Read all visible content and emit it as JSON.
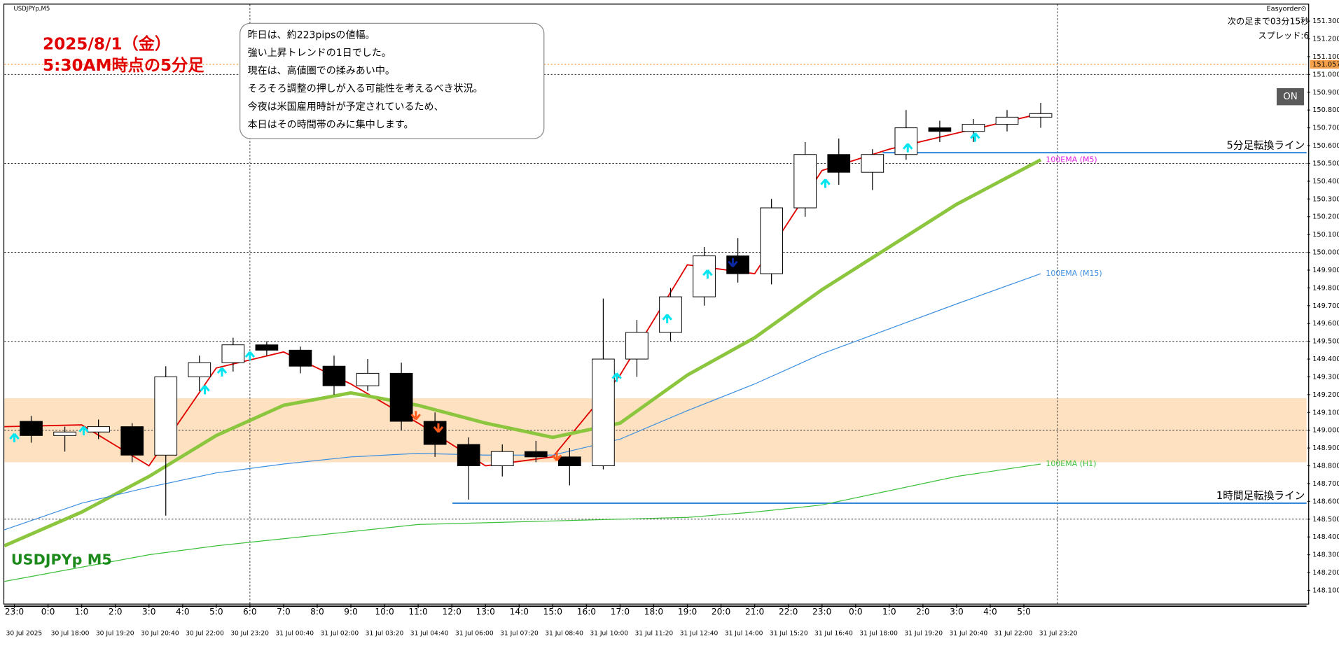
{
  "chart_data": {
    "type": "candlestick",
    "symbol_caption": "USDJPYp,M5",
    "watermark": "USDJPYp M5",
    "headline": [
      "2025/8/1（金）",
      "5:30AM時点の5分足"
    ],
    "note": [
      "昨日は、約223pipsの値幅。",
      "強い上昇トレンドの1日でした。",
      "現在は、高値圏での揉みあい中。",
      "そろそろ調整の押しが入る可能性を考えるべき状況。",
      "今夜は米国雇用時計が予定されているため、",
      "本日はその時間帯のみに集中します。"
    ],
    "panel": [
      "Easyorder⊙",
      "次の足まで03分15秒",
      "スプレッド:6"
    ],
    "button": "ON",
    "xlim": [
      -0.3,
      38.4
    ],
    "ylim": [
      148.025,
      151.393
    ],
    "xticks": [
      {
        "value": 0,
        "label": "23:0"
      },
      {
        "value": 1,
        "label": "0:0"
      },
      {
        "value": 2,
        "label": "1:0"
      },
      {
        "value": 3,
        "label": "2:0"
      },
      {
        "value": 4,
        "label": "3:0"
      },
      {
        "value": 5,
        "label": "4:0"
      },
      {
        "value": 6,
        "label": "5:0"
      },
      {
        "value": 7,
        "label": "6:0"
      },
      {
        "value": 8,
        "label": "7:0"
      },
      {
        "value": 9,
        "label": "8:0"
      },
      {
        "value": 10,
        "label": "9:0"
      },
      {
        "value": 11,
        "label": "10:0"
      },
      {
        "value": 12,
        "label": "11:0"
      },
      {
        "value": 13,
        "label": "12:0"
      },
      {
        "value": 14,
        "label": "13:0"
      },
      {
        "value": 15,
        "label": "14:0"
      },
      {
        "value": 16,
        "label": "15:0"
      },
      {
        "value": 17,
        "label": "16:0"
      },
      {
        "value": 18,
        "label": "17:0"
      },
      {
        "value": 19,
        "label": "18:0"
      },
      {
        "value": 20,
        "label": "19:0"
      },
      {
        "value": 21,
        "label": "20:0"
      },
      {
        "value": 22,
        "label": "21:0"
      },
      {
        "value": 23,
        "label": "22:0"
      },
      {
        "value": 24,
        "label": "23:0"
      },
      {
        "value": 25,
        "label": "0:0"
      },
      {
        "value": 26,
        "label": "1:0"
      },
      {
        "value": 27,
        "label": "2:0"
      },
      {
        "value": 28,
        "label": "3:0"
      },
      {
        "value": 29,
        "label": "4:0"
      },
      {
        "value": 30,
        "label": "5:0"
      }
    ],
    "date_labels": [
      "30 Jul 2025",
      "30 Jul 18:00",
      "30 Jul 19:20",
      "30 Jul 20:40",
      "30 Jul 22:00",
      "30 Jul 23:20",
      "31 Jul 00:40",
      "31 Jul 02:00",
      "31 Jul 03:20",
      "31 Jul 04:40",
      "31 Jul 06:00",
      "31 Jul 07:20",
      "31 Jul 08:40",
      "31 Jul 10:00",
      "31 Jul 11:20",
      "31 Jul 12:40",
      "31 Jul 14:00",
      "31 Jul 15:20",
      "31 Jul 16:40",
      "31 Jul 18:00",
      "31 Jul 19:20",
      "31 Jul 20:40",
      "31 Jul 22:00",
      "31 Jul 23:20"
    ],
    "yticks": [
      {
        "value": 148.1,
        "label": "148.100"
      },
      {
        "value": 148.2,
        "label": "148.200"
      },
      {
        "value": 148.3,
        "label": "148.300"
      },
      {
        "value": 148.4,
        "label": "148.400"
      },
      {
        "value": 148.5,
        "label": "148.500"
      },
      {
        "value": 148.6,
        "label": "148.600"
      },
      {
        "value": 148.7,
        "label": "148.700"
      },
      {
        "value": 148.8,
        "label": "148.800"
      },
      {
        "value": 148.9,
        "label": "148.900"
      },
      {
        "value": 149,
        "label": "149.000"
      },
      {
        "value": 149.1,
        "label": "149.100"
      },
      {
        "value": 149.2,
        "label": "149.200"
      },
      {
        "value": 149.3,
        "label": "149.300"
      },
      {
        "value": 149.4,
        "label": "149.400"
      },
      {
        "value": 149.5,
        "label": "149.500"
      },
      {
        "value": 149.6,
        "label": "149.600"
      },
      {
        "value": 149.7,
        "label": "149.700"
      },
      {
        "value": 149.8,
        "label": "149.800"
      },
      {
        "value": 149.9,
        "label": "149.900"
      },
      {
        "value": 150,
        "label": "150.000"
      },
      {
        "value": 150.1,
        "label": "150.100"
      },
      {
        "value": 150.2,
        "label": "150.200"
      },
      {
        "value": 150.3,
        "label": "150.300"
      },
      {
        "value": 150.4,
        "label": "150.400"
      },
      {
        "value": 150.5,
        "label": "150.500"
      },
      {
        "value": 150.6,
        "label": "150.600"
      },
      {
        "value": 150.7,
        "label": "150.700"
      },
      {
        "value": 150.8,
        "label": "150.800"
      },
      {
        "value": 150.9,
        "label": "150.900"
      },
      {
        "value": 151,
        "label": "151.000"
      },
      {
        "value": 151.1,
        "label": "151.100"
      },
      {
        "value": 151.2,
        "label": "151.200"
      },
      {
        "value": 151.3,
        "label": "151.300"
      }
    ],
    "hgrid": [
      148.5,
      149,
      149.5,
      150,
      150.5,
      151
    ],
    "vgrid": [
      7,
      31
    ],
    "zone": [
      148.82,
      149.18
    ],
    "zone_color": "#fde1c0",
    "level_line": {
      "value": 151.057,
      "color": "#f5a04a"
    },
    "turn_lines": [
      {
        "label": "5分足転換ライン",
        "value": 150.56,
        "from": 25.8
      },
      {
        "label": "1時間足転換ライン",
        "value": 148.59,
        "from": 13.02
      }
    ],
    "turn_color": "#1e7ad6",
    "candles": {
      "x": [
        0,
        1,
        2,
        3,
        4,
        5,
        6,
        7,
        8,
        9,
        10,
        11,
        12,
        13,
        14,
        15,
        16,
        17,
        18,
        19,
        20,
        21,
        22,
        23,
        24,
        25,
        26,
        27,
        28,
        29,
        30
      ],
      "open": [
        149.05,
        148.97,
        148.99,
        149.02,
        148.86,
        149.3,
        149.38,
        149.48,
        149.45,
        149.36,
        149.25,
        149.32,
        149.05,
        148.92,
        148.8,
        148.88,
        148.85,
        148.8,
        149.4,
        149.55,
        149.75,
        149.98,
        149.88,
        150.25,
        150.55,
        150.45,
        150.55,
        150.7,
        150.68,
        150.72,
        150.76
      ],
      "high": [
        149.08,
        149.02,
        149.06,
        149.04,
        149.36,
        149.42,
        149.52,
        149.5,
        149.47,
        149.42,
        149.4,
        149.38,
        149.1,
        148.96,
        148.92,
        148.94,
        148.9,
        149.74,
        149.62,
        149.8,
        150.03,
        150.08,
        150.3,
        150.62,
        150.64,
        150.58,
        150.8,
        150.74,
        150.75,
        150.8,
        150.84
      ],
      "low": [
        148.93,
        148.88,
        148.95,
        148.82,
        148.52,
        149.22,
        149.33,
        149.42,
        149.32,
        149.2,
        149.22,
        149.0,
        148.85,
        148.61,
        148.74,
        148.82,
        148.69,
        148.78,
        149.3,
        149.5,
        149.7,
        149.83,
        149.82,
        150.2,
        150.38,
        150.35,
        150.52,
        150.62,
        150.62,
        150.68,
        150.7
      ],
      "close": [
        148.97,
        148.99,
        149.02,
        148.86,
        149.3,
        149.38,
        149.48,
        149.45,
        149.36,
        149.25,
        149.32,
        149.05,
        148.92,
        148.8,
        148.88,
        148.85,
        148.8,
        149.4,
        149.55,
        149.75,
        149.98,
        149.88,
        150.25,
        150.55,
        150.45,
        150.55,
        150.7,
        150.68,
        150.72,
        150.76,
        150.78
      ]
    },
    "ema_x": [
      -0.3,
      2,
      4,
      6,
      8,
      10,
      12,
      14,
      16,
      18,
      20,
      22,
      24,
      26,
      28,
      30.5
    ],
    "series": [
      {
        "color": "#e00000",
        "width": 1.5,
        "values": [
          149.02,
          149.03,
          148.8,
          149.35,
          149.44,
          149.26,
          149.04,
          148.8,
          148.85,
          149.31,
          149.93,
          149.88,
          150.46,
          150.58,
          150.67,
          150.78
        ]
      },
      {
        "name": "100EMA (M5)",
        "color": "#8cc63f",
        "label_color": "#e020e0",
        "width": 4,
        "values": [
          148.35,
          148.54,
          148.74,
          148.97,
          149.14,
          149.21,
          149.14,
          149.04,
          148.96,
          149.04,
          149.31,
          149.52,
          149.79,
          150.03,
          150.27,
          150.52
        ]
      },
      {
        "name": "100EMA (M15)",
        "color": "#3d8fe0",
        "label_color": "#3d8fe0",
        "width": 1,
        "values": [
          148.44,
          148.59,
          148.68,
          148.76,
          148.81,
          148.85,
          148.87,
          148.86,
          148.86,
          148.95,
          149.11,
          149.26,
          149.43,
          149.57,
          149.71,
          149.88
        ]
      },
      {
        "name": "100EMA (H1)",
        "color": "#3cc03c",
        "label_color": "#3cc03c",
        "width": 1,
        "values": [
          148.15,
          148.23,
          148.3,
          148.35,
          148.39,
          148.43,
          148.47,
          148.48,
          148.49,
          148.5,
          148.51,
          148.54,
          148.58,
          148.66,
          148.74,
          148.81
        ]
      }
    ],
    "signals_up": {
      "color": "#00e5f0",
      "x": [
        0,
        2.06,
        5.66,
        6.17,
        7.0,
        17.9,
        19.4,
        20.6,
        24.1,
        26.55,
        28.55
      ],
      "values": [
        148.98,
        149.02,
        149.25,
        149.35,
        149.44,
        149.32,
        149.65,
        149.9,
        150.41,
        150.61,
        150.67
      ]
    },
    "signals_down": {
      "color": "#ff5a1e",
      "x": [
        11.93,
        12.6,
        16.12
      ],
      "values": [
        149.06,
        148.99,
        148.83
      ]
    },
    "signals_strong": {
      "color": "#0a28a0",
      "x": [
        21.35
      ],
      "values": [
        149.92
      ]
    }
  }
}
